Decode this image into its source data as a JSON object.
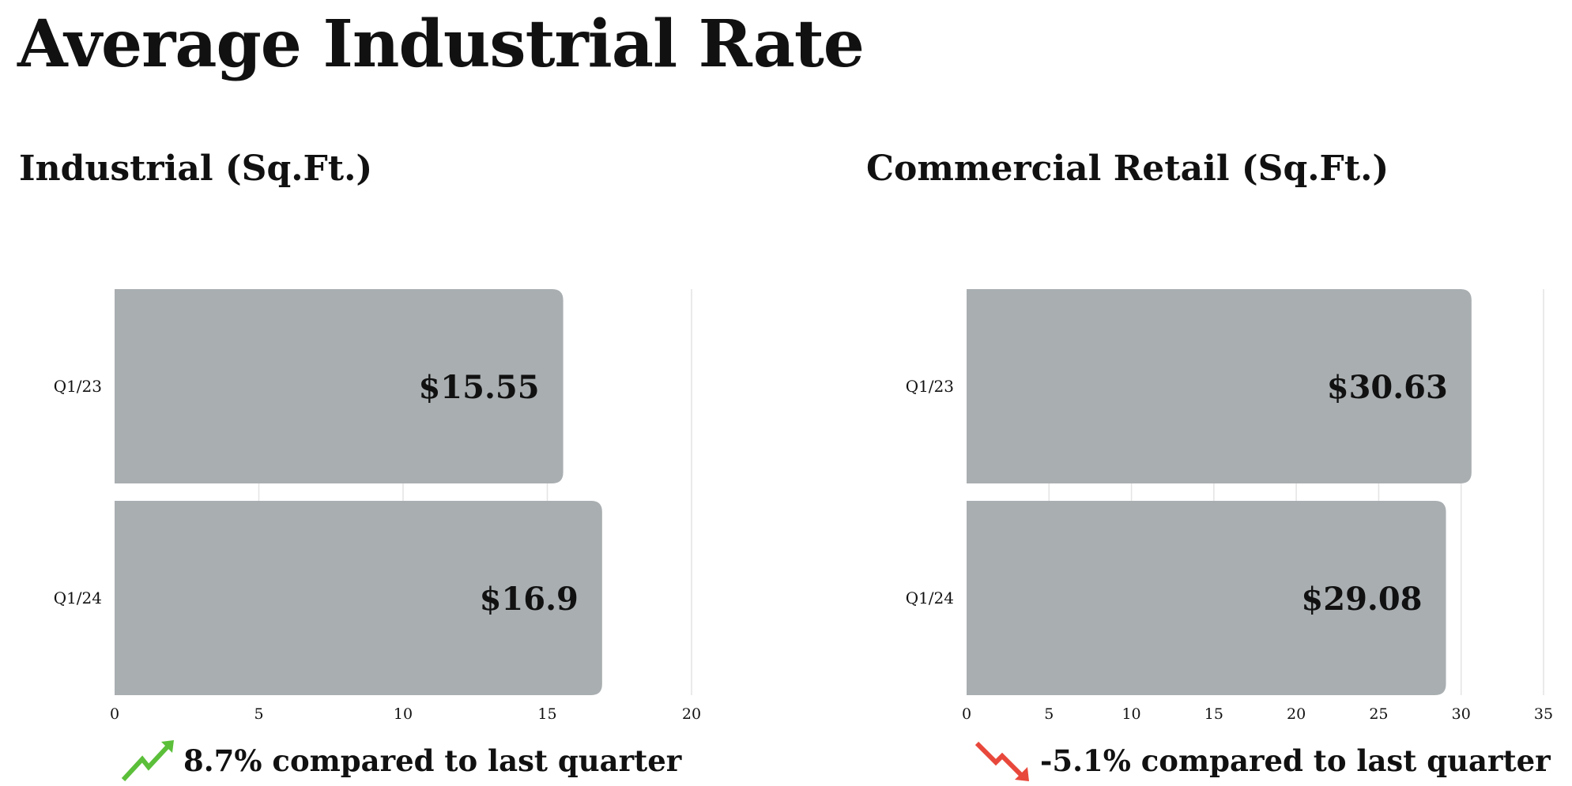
{
  "title": "Average Industrial Rate",
  "chart_data": [
    {
      "type": "bar",
      "orientation": "horizontal",
      "title": "Industrial (Sq.Ft.)",
      "categories": [
        "Q1/23",
        "Q1/24"
      ],
      "values": [
        15.55,
        16.9
      ],
      "value_labels": [
        "$15.55",
        "$16.9"
      ],
      "xlim": [
        0,
        20
      ],
      "xticks": [
        0,
        5,
        10,
        15,
        20
      ],
      "grid": true,
      "bar_color": "#a9aeb1",
      "footer": {
        "text": "8.7% compared to last quarter",
        "trend": "up",
        "color": "#5bbf3a"
      }
    },
    {
      "type": "bar",
      "orientation": "horizontal",
      "title": "Commercial Retail (Sq.Ft.)",
      "categories": [
        "Q1/23",
        "Q1/24"
      ],
      "values": [
        30.63,
        29.08
      ],
      "value_labels": [
        "$30.63",
        "$29.08"
      ],
      "xlim": [
        0,
        35
      ],
      "xticks": [
        0,
        5,
        10,
        15,
        20,
        25,
        30,
        35
      ],
      "grid": true,
      "bar_color": "#a9aeb1",
      "footer": {
        "text": "-5.1% compared to last quarter",
        "trend": "down",
        "color": "#e8483b"
      }
    }
  ]
}
